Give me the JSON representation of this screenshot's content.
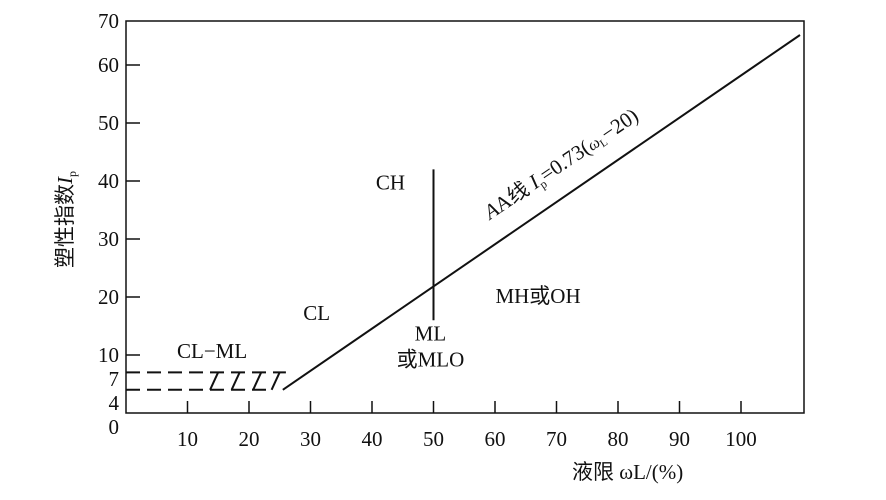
{
  "chart_data": {
    "type": "line",
    "title": "",
    "xlabel": "液限 ωL/(%)",
    "xlabel_parts": {
      "prefix": "液限 ",
      "symbol": "ω",
      "sub": "L",
      "suffix": "/(%)"
    },
    "ylabel": "塑性指数Ip",
    "ylabel_parts": {
      "prefix": "塑性指数",
      "symbol": "I",
      "sub": "p"
    },
    "xlim": [
      0,
      110
    ],
    "ylim": [
      0,
      70
    ],
    "x_ticks": [
      10,
      20,
      30,
      40,
      50,
      60,
      70,
      80,
      90,
      100
    ],
    "y_ticks": [
      0,
      4,
      7,
      10,
      20,
      30,
      40,
      50,
      60,
      70
    ],
    "grid": false,
    "series": [
      {
        "name": "A线 Ip=0.73(ωL-20)",
        "kind": "A-line",
        "x": [
          25.5,
          110
        ],
        "y": [
          4,
          65.7
        ]
      },
      {
        "kind": "vertical-divider",
        "x": [
          50,
          50
        ],
        "y": [
          16,
          42
        ]
      },
      {
        "kind": "dashed",
        "x": [
          0,
          26
        ],
        "y": [
          7,
          7
        ]
      },
      {
        "kind": "dashed",
        "x": [
          0,
          23
        ],
        "y": [
          4,
          4
        ]
      }
    ],
    "a_line_label": {
      "prefix": "A线 ",
      "symbol": "I",
      "sub": "p",
      "mid": "=0.73(",
      "w": "ω",
      "wsub": "L",
      "suffix": "−20)"
    },
    "regions": [
      {
        "label": "CH",
        "x": 43,
        "y": 38.5
      },
      {
        "label": "CL",
        "x": 31,
        "y": 16
      },
      {
        "label": "CL−ML",
        "x": 14,
        "y": 9.5
      },
      {
        "label": "ML",
        "x": 49.5,
        "y": 12.5
      },
      {
        "label": "或MLO",
        "x": 49.5,
        "y": 8
      },
      {
        "label": "MH或OH",
        "x": 67,
        "y": 19
      }
    ]
  }
}
